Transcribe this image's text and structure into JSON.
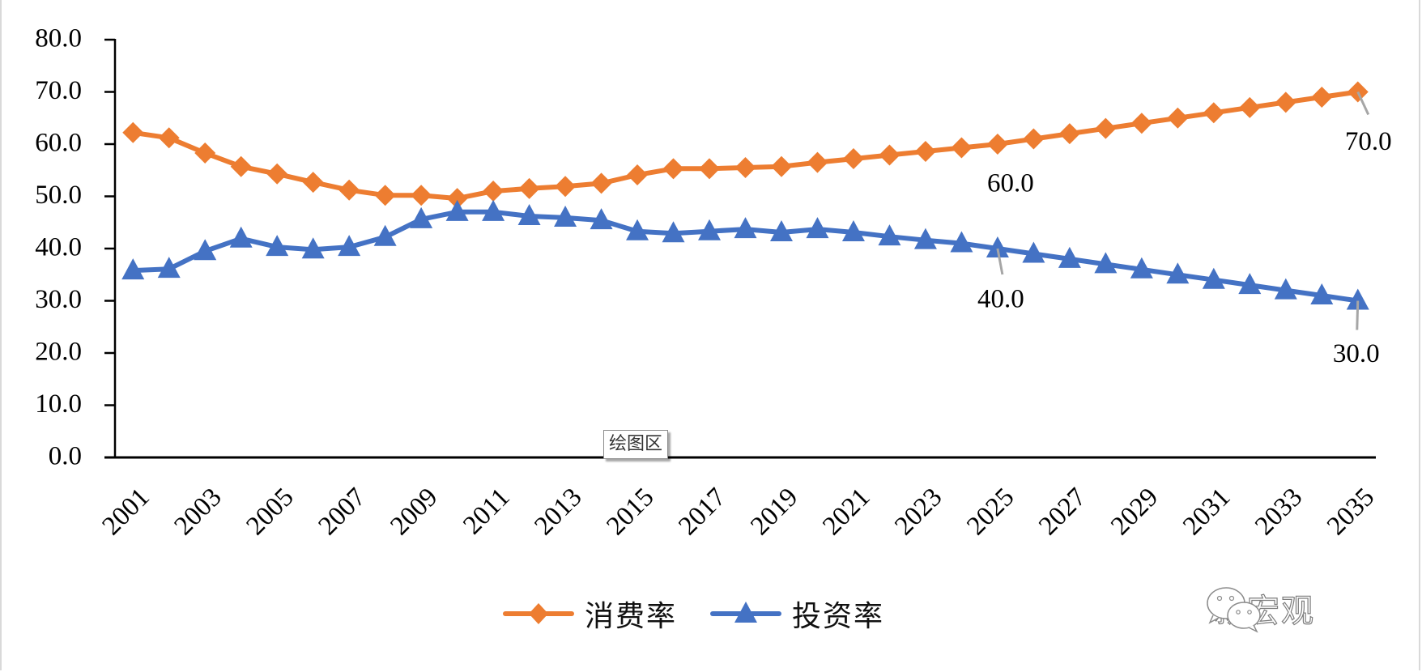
{
  "chart_data": {
    "type": "line",
    "title": "",
    "xlabel": "",
    "ylabel": "",
    "ylim": [
      0,
      80
    ],
    "yticks": [
      "0.0",
      "10.0",
      "20.0",
      "30.0",
      "40.0",
      "50.0",
      "60.0",
      "70.0",
      "80.0"
    ],
    "grid": false,
    "legend_position": "bottom",
    "x": [
      2001,
      2002,
      2003,
      2004,
      2005,
      2006,
      2007,
      2008,
      2009,
      2010,
      2011,
      2012,
      2013,
      2014,
      2015,
      2016,
      2017,
      2018,
      2019,
      2020,
      2021,
      2022,
      2023,
      2024,
      2025,
      2026,
      2027,
      2028,
      2029,
      2030,
      2031,
      2032,
      2033,
      2034,
      2035
    ],
    "xtick_labels": [
      "2001",
      "2003",
      "2005",
      "2007",
      "2009",
      "2011",
      "2013",
      "2015",
      "2017",
      "2019",
      "2021",
      "2023",
      "2025",
      "2027",
      "2029",
      "2031",
      "2033",
      "2035"
    ],
    "series": [
      {
        "name": "消费率",
        "color": "#ED7D31",
        "marker": "diamond",
        "values": [
          62.2,
          61.2,
          58.3,
          55.7,
          54.3,
          52.7,
          51.2,
          50.2,
          50.2,
          49.6,
          51.0,
          51.5,
          51.9,
          52.5,
          54.1,
          55.3,
          55.3,
          55.5,
          55.7,
          56.5,
          57.2,
          57.9,
          58.6,
          59.3,
          60.0,
          61.0,
          62.0,
          63.0,
          64.0,
          65.0,
          66.0,
          67.0,
          68.0,
          69.0,
          70.0
        ]
      },
      {
        "name": "投资率",
        "color": "#4472C4",
        "marker": "triangle",
        "values": [
          35.8,
          36.1,
          39.5,
          41.9,
          40.3,
          39.8,
          40.3,
          42.2,
          45.6,
          47.0,
          47.0,
          46.2,
          45.9,
          45.4,
          43.3,
          42.9,
          43.3,
          43.7,
          43.1,
          43.7,
          43.1,
          42.3,
          41.6,
          41.0,
          40.0,
          39.0,
          38.0,
          37.0,
          36.0,
          35.0,
          34.0,
          33.0,
          32.0,
          31.0,
          30.0
        ]
      }
    ],
    "annotations": [
      {
        "series": 0,
        "x": 2025,
        "text": "60.0"
      },
      {
        "series": 0,
        "x": 2035,
        "text": "70.0"
      },
      {
        "series": 1,
        "x": 2025,
        "text": "40.0"
      },
      {
        "series": 1,
        "x": 2035,
        "text": "30.0"
      }
    ]
  },
  "legend": {
    "items": [
      {
        "label": "消费率",
        "color": "#ED7D31",
        "marker": "diamond"
      },
      {
        "label": "投资率",
        "color": "#4472C4",
        "marker": "triangle"
      }
    ]
  },
  "tooltip": {
    "text": "绘图区"
  },
  "watermark": {
    "icon": "wechat-icon",
    "text": "新宏观"
  }
}
